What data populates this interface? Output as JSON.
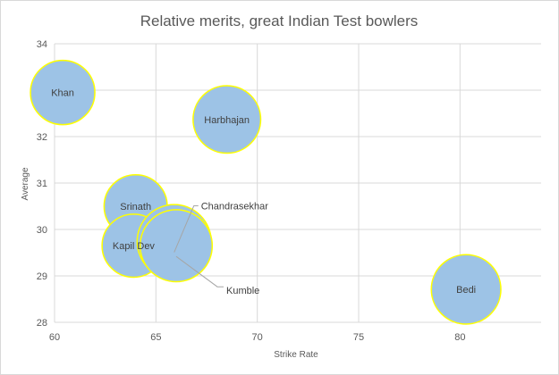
{
  "chart_data": {
    "type": "bubble",
    "title": "Relative merits, great Indian Test bowlers",
    "xlabel": "Strike Rate",
    "ylabel": "Average",
    "xlim": [
      60,
      84
    ],
    "ylim": [
      28,
      34
    ],
    "xticks": [
      60,
      65,
      70,
      75,
      80
    ],
    "yticks": [
      28,
      29,
      30,
      31,
      32,
      33,
      34
    ],
    "grid": true,
    "legend": "none",
    "colors": {
      "fill": "#9dc3e6",
      "stroke": "#ffff00",
      "axis": "#d9d9d9",
      "text": "#595959",
      "leader": "#a6a6a6"
    },
    "points": [
      {
        "label": "Khan",
        "x": 60.4,
        "y": 32.95,
        "size": 1.0
      },
      {
        "label": "Harbhajan",
        "x": 68.5,
        "y": 32.37,
        "size": 1.05
      },
      {
        "label": "Srinath",
        "x": 64.0,
        "y": 30.5,
        "size": 0.98
      },
      {
        "label": "Kapil Dev",
        "x": 63.9,
        "y": 29.65,
        "size": 0.98
      },
      {
        "label": "Chandrasekhar",
        "x": 65.9,
        "y": 29.74,
        "size": 1.15
      },
      {
        "label": "Kumble",
        "x": 66.0,
        "y": 29.65,
        "size": 1.12
      },
      {
        "label": "Bedi",
        "x": 80.3,
        "y": 28.71,
        "size": 1.08
      }
    ]
  }
}
